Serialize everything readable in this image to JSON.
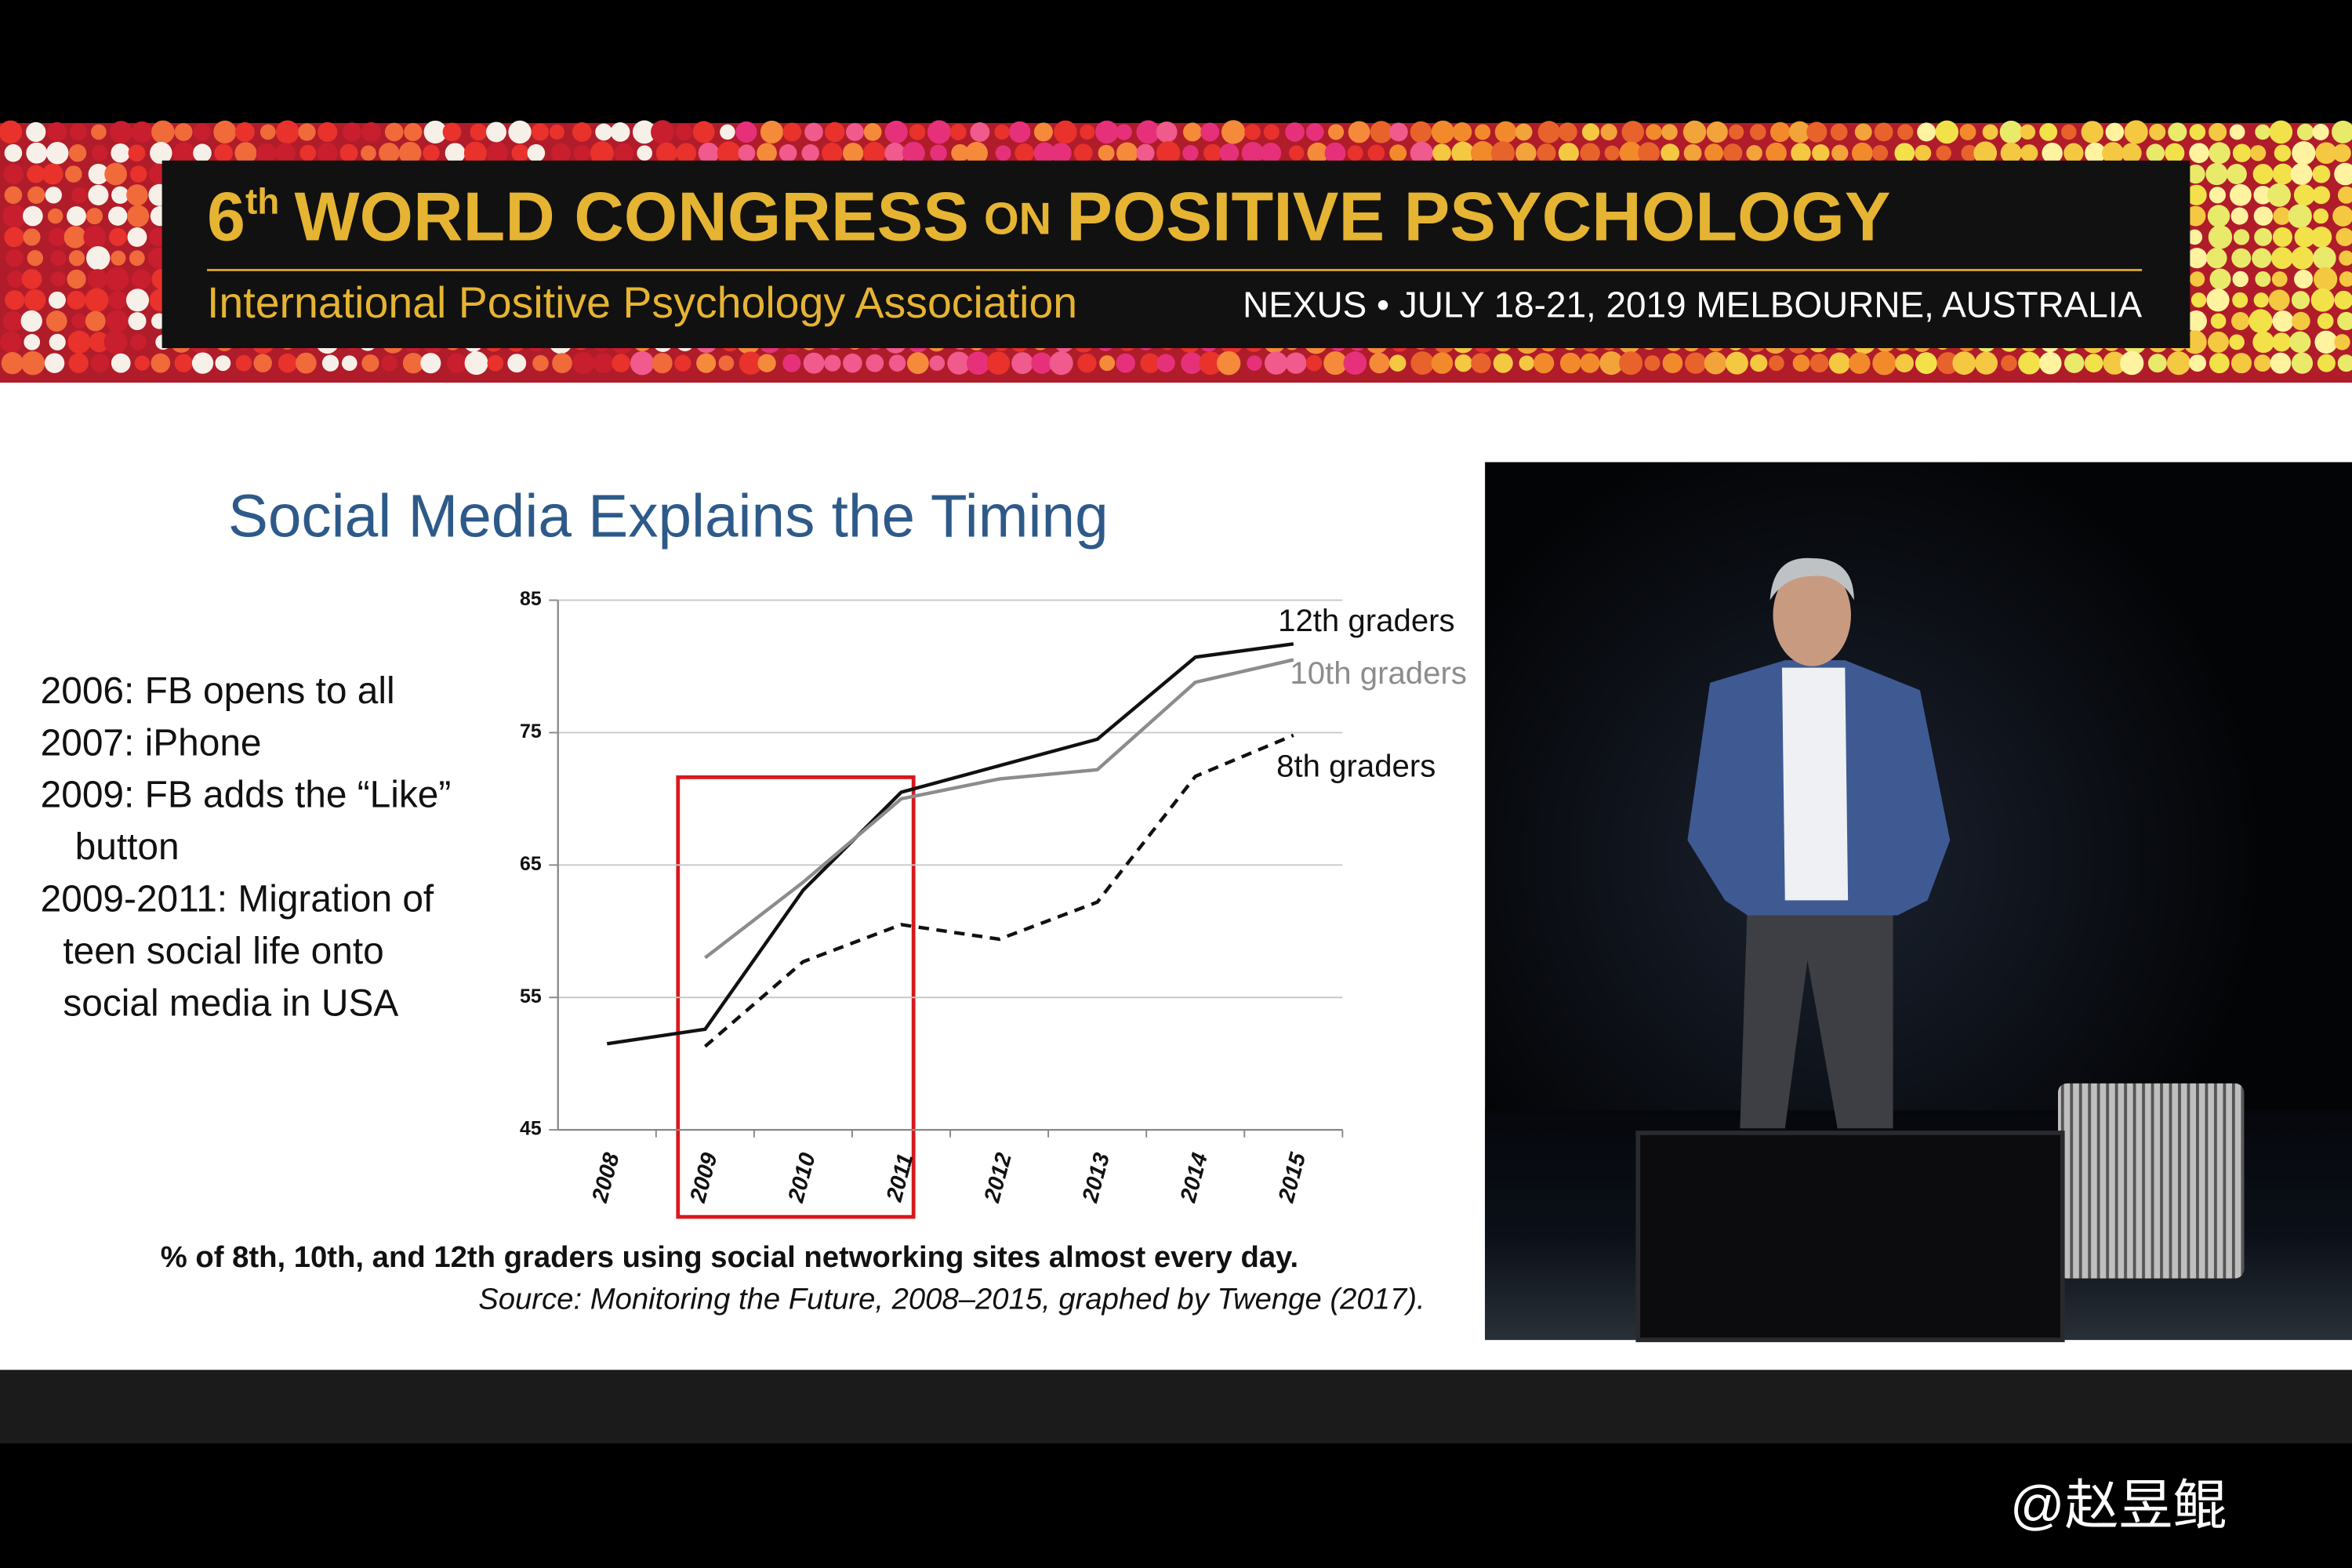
{
  "banner": {
    "title_parts": [
      "6",
      "th",
      "WORLD CONGRESS",
      "ON",
      "POSITIVE PSYCHOLOGY"
    ],
    "association": "International Positive Psychology Association",
    "event": "NEXUS • JULY 18-21, 2019 MELBOURNE, AUSTRALIA"
  },
  "notes": [
    "2006: FB opens to all",
    "2007: iPhone",
    "2009: FB adds the “Like”",
    "button",
    "2009-2011: Migration of",
    "teen social life onto",
    "social media in USA"
  ],
  "chart_data": {
    "type": "line",
    "title": "Social Media Explains the Timing",
    "categories": [
      "2008",
      "2009",
      "2010",
      "2011",
      "2012",
      "2013",
      "2014",
      "2015"
    ],
    "series": [
      {
        "name": "12th graders",
        "color": "#111111",
        "dashed": false,
        "values": [
          51.5,
          52.6,
          63.1,
          70.5,
          72.5,
          74.5,
          80.7,
          81.7
        ]
      },
      {
        "name": "10th graders",
        "color": "#8c8c8c",
        "dashed": false,
        "values": [
          null,
          58.0,
          63.7,
          70.0,
          71.5,
          72.2,
          78.8,
          80.5
        ]
      },
      {
        "name": "8th graders",
        "color": "#111111",
        "dashed": true,
        "values": [
          null,
          51.3,
          57.7,
          60.5,
          59.4,
          62.2,
          71.7,
          74.8
        ]
      }
    ],
    "ylim": [
      45,
      85
    ],
    "yticks": [
      45,
      55,
      65,
      75,
      85
    ],
    "grid": true,
    "caption": "% of 8th, 10th, and 12th graders using social networking sites almost every day.",
    "source": "Source: Monitoring the Future, 2008–2015, graphed by Twenge (2017)."
  },
  "watermark": "@赵昱鲲"
}
